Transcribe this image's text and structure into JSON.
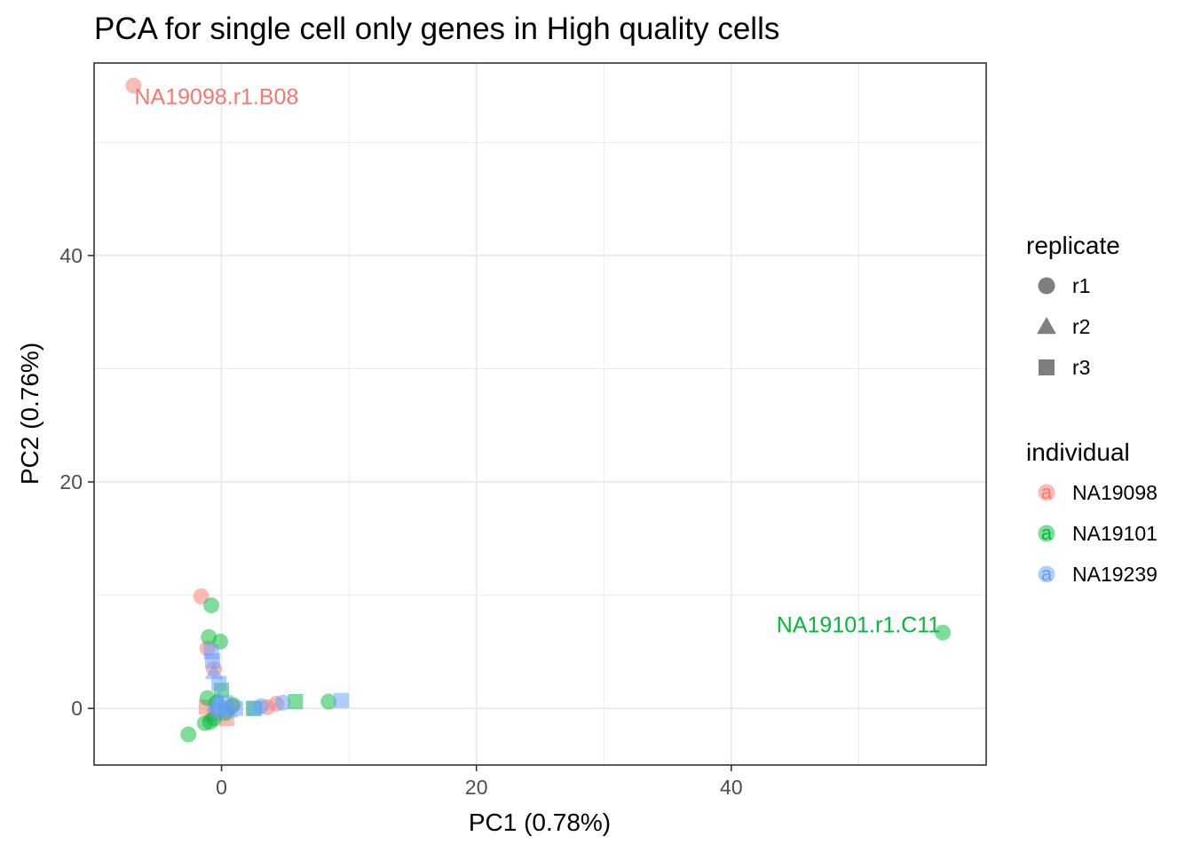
{
  "chart_data": {
    "type": "scatter",
    "title": "PCA for single cell only genes in High quality cells",
    "xlabel": "PC1 (0.78%)",
    "ylabel": "PC2 (0.76%)",
    "xlim": [
      -10,
      60
    ],
    "ylim": [
      -5,
      57
    ],
    "x_ticks": [
      0,
      20,
      40
    ],
    "y_ticks": [
      0,
      20,
      40
    ],
    "x_tick_labels": [
      "0",
      "20",
      "40"
    ],
    "y_tick_labels": [
      "0",
      "20",
      "40"
    ],
    "grid": true,
    "legend_position": "right",
    "colors": {
      "NA19098": "#F8766D",
      "NA19101": "#00BA38",
      "NA19239": "#619CFF"
    },
    "legends": [
      {
        "title": "replicate",
        "items": [
          {
            "label": "r1",
            "shape": "circle"
          },
          {
            "label": "r2",
            "shape": "triangle"
          },
          {
            "label": "r3",
            "shape": "square"
          }
        ]
      },
      {
        "title": "individual",
        "key_glyph": "a",
        "items": [
          {
            "label": "NA19098",
            "color": "#F8766D"
          },
          {
            "label": "NA19101",
            "color": "#00BA38"
          },
          {
            "label": "NA19239",
            "color": "#619CFF"
          }
        ]
      }
    ],
    "series": [
      {
        "name": "NA19098",
        "points": [
          {
            "x": -6.9,
            "y": 55.0,
            "replicate": "r1"
          },
          {
            "x": -1.6,
            "y": 9.9,
            "replicate": "r1"
          },
          {
            "x": -0.6,
            "y": 3.5,
            "replicate": "r1"
          },
          {
            "x": -1.1,
            "y": 5.3,
            "replicate": "r1"
          },
          {
            "x": -0.8,
            "y": -0.5,
            "replicate": "r2"
          },
          {
            "x": -1.2,
            "y": 0.1,
            "replicate": "r3"
          },
          {
            "x": 0.4,
            "y": -0.9,
            "replicate": "r3"
          },
          {
            "x": 3.6,
            "y": 0.1,
            "replicate": "r1"
          },
          {
            "x": 4.3,
            "y": 0.4,
            "replicate": "r1"
          },
          {
            "x": 0.8,
            "y": 0.2,
            "replicate": "r1"
          }
        ]
      },
      {
        "name": "NA19101",
        "points": [
          {
            "x": 56.6,
            "y": 6.7,
            "replicate": "r1"
          },
          {
            "x": -0.8,
            "y": 9.1,
            "replicate": "r1"
          },
          {
            "x": -1.0,
            "y": 6.3,
            "replicate": "r1"
          },
          {
            "x": -0.1,
            "y": 5.9,
            "replicate": "r1"
          },
          {
            "x": -2.6,
            "y": -2.3,
            "replicate": "r1"
          },
          {
            "x": -1.3,
            "y": -1.3,
            "replicate": "r1"
          },
          {
            "x": -0.9,
            "y": -1.2,
            "replicate": "r1"
          },
          {
            "x": -0.6,
            "y": -0.9,
            "replicate": "r1"
          },
          {
            "x": -1.1,
            "y": 0.9,
            "replicate": "r1"
          },
          {
            "x": 0.0,
            "y": 1.6,
            "replicate": "r3"
          },
          {
            "x": -0.4,
            "y": 0.5,
            "replicate": "r1"
          },
          {
            "x": 0.3,
            "y": -0.4,
            "replicate": "r1"
          },
          {
            "x": 0.9,
            "y": 0.3,
            "replicate": "r1"
          },
          {
            "x": 2.5,
            "y": 0.0,
            "replicate": "r3"
          },
          {
            "x": 5.8,
            "y": 0.6,
            "replicate": "r3"
          },
          {
            "x": 8.4,
            "y": 0.6,
            "replicate": "r1"
          }
        ]
      },
      {
        "name": "NA19239",
        "points": [
          {
            "x": -0.8,
            "y": 5.0,
            "replicate": "r3"
          },
          {
            "x": -0.7,
            "y": 4.2,
            "replicate": "r3"
          },
          {
            "x": -0.6,
            "y": 3.2,
            "replicate": "r2"
          },
          {
            "x": -0.2,
            "y": 2.2,
            "replicate": "r3"
          },
          {
            "x": -0.5,
            "y": 0.4,
            "replicate": "r2"
          },
          {
            "x": -0.2,
            "y": 0.8,
            "replicate": "r2"
          },
          {
            "x": 0.1,
            "y": 0.1,
            "replicate": "r2"
          },
          {
            "x": -0.3,
            "y": -0.3,
            "replicate": "r1"
          },
          {
            "x": 0.3,
            "y": 0.5,
            "replicate": "r3"
          },
          {
            "x": 0.6,
            "y": -0.2,
            "replicate": "r2"
          },
          {
            "x": 1.1,
            "y": 0.0,
            "replicate": "r3"
          },
          {
            "x": 2.6,
            "y": 0.0,
            "replicate": "r3"
          },
          {
            "x": 3.1,
            "y": 0.2,
            "replicate": "r1"
          },
          {
            "x": 4.8,
            "y": 0.5,
            "replicate": "r1"
          },
          {
            "x": 9.4,
            "y": 0.7,
            "replicate": "r3"
          }
        ]
      }
    ],
    "annotations": [
      {
        "text": "NA19098.r1.B08",
        "x": -6.9,
        "y": 55.0,
        "series": "NA19098",
        "anchor": "start"
      },
      {
        "text": "NA19101.r1.C11",
        "x": 56.6,
        "y": 6.7,
        "series": "NA19101",
        "anchor": "end"
      }
    ]
  }
}
